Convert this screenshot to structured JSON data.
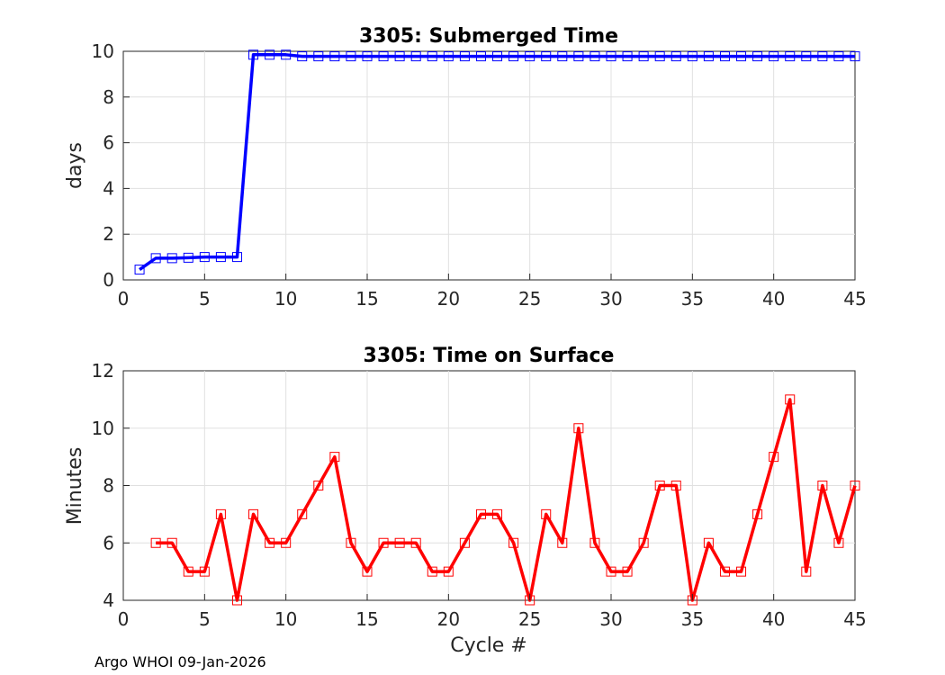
{
  "chart_data": [
    {
      "type": "line",
      "title": "3305: Submerged Time",
      "xlabel": "",
      "ylabel": "days",
      "xlim": [
        0,
        45
      ],
      "ylim": [
        0,
        10
      ],
      "xticks": [
        0,
        5,
        10,
        15,
        20,
        25,
        30,
        35,
        40,
        45
      ],
      "yticks": [
        0,
        2,
        4,
        6,
        8,
        10
      ],
      "grid": true,
      "series": [
        {
          "name": "Submerged Time",
          "color": "#0000ff",
          "marker": "square",
          "x": [
            1,
            2,
            3,
            4,
            5,
            6,
            7,
            8,
            9,
            10,
            11,
            12,
            13,
            14,
            15,
            16,
            17,
            18,
            19,
            20,
            21,
            22,
            23,
            24,
            25,
            26,
            27,
            28,
            29,
            30,
            31,
            32,
            33,
            34,
            35,
            36,
            37,
            38,
            39,
            40,
            41,
            42,
            43,
            44,
            45
          ],
          "values": [
            0.45,
            0.95,
            0.95,
            0.97,
            1.0,
            1.0,
            1.0,
            9.85,
            9.85,
            9.85,
            9.78,
            9.78,
            9.78,
            9.78,
            9.78,
            9.78,
            9.78,
            9.78,
            9.78,
            9.78,
            9.78,
            9.78,
            9.78,
            9.78,
            9.78,
            9.78,
            9.78,
            9.78,
            9.78,
            9.78,
            9.78,
            9.78,
            9.78,
            9.78,
            9.78,
            9.78,
            9.78,
            9.78,
            9.78,
            9.78,
            9.78,
            9.78,
            9.78,
            9.78,
            9.78
          ]
        }
      ]
    },
    {
      "type": "line",
      "title": "3305: Time on Surface",
      "xlabel": "Cycle #",
      "ylabel": "Minutes",
      "xlim": [
        0,
        45
      ],
      "ylim": [
        4,
        12
      ],
      "xticks": [
        0,
        5,
        10,
        15,
        20,
        25,
        30,
        35,
        40,
        45
      ],
      "yticks": [
        4,
        6,
        8,
        10,
        12
      ],
      "grid": true,
      "series": [
        {
          "name": "Time on Surface",
          "color": "#ff0000",
          "marker": "square",
          "x": [
            2,
            3,
            4,
            5,
            6,
            7,
            8,
            9,
            10,
            11,
            12,
            13,
            14,
            15,
            16,
            17,
            18,
            19,
            20,
            21,
            22,
            23,
            24,
            25,
            26,
            27,
            28,
            29,
            30,
            31,
            32,
            33,
            34,
            35,
            36,
            37,
            38,
            39,
            40,
            41,
            42,
            43,
            44,
            45
          ],
          "values": [
            6,
            6,
            5,
            5,
            7,
            4,
            7,
            6,
            6,
            7,
            8,
            9,
            6,
            5,
            6,
            6,
            6,
            5,
            5,
            6,
            7,
            7,
            6,
            4,
            7,
            6,
            10,
            6,
            5,
            5,
            6,
            8,
            8,
            4,
            6,
            5,
            5,
            7,
            9,
            11,
            5,
            8,
            6,
            8
          ]
        }
      ]
    }
  ],
  "footer": "Argo WHOI 09-Jan-2026"
}
